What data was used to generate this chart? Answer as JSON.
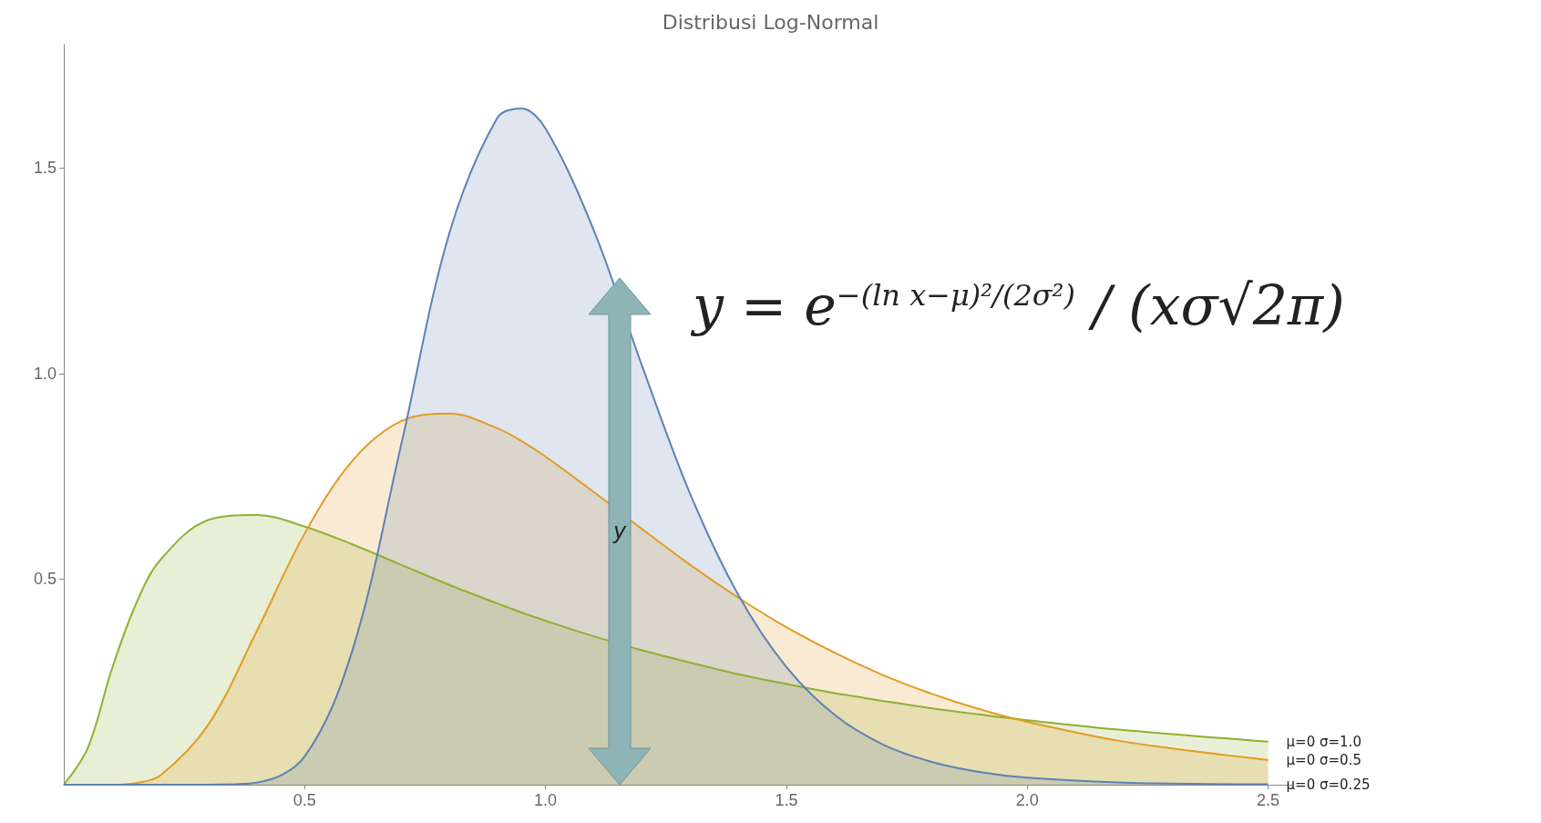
{
  "chart_data": {
    "type": "area",
    "title": "Distribusi Log-Normal",
    "x": [
      0,
      0.05,
      0.1,
      0.15,
      0.2,
      0.3,
      0.4,
      0.5,
      0.6,
      0.7,
      0.8,
      0.9,
      0.95,
      1.0,
      1.1,
      1.2,
      1.3,
      1.4,
      1.5,
      1.6,
      1.7,
      1.8,
      1.9,
      2.0,
      2.2,
      2.5
    ],
    "series": [
      {
        "name": "μ=0 σ=1.0",
        "color": "#8fb032",
        "values": [
          0,
          0.09,
          0.282,
          0.44,
          0.546,
          0.644,
          0.656,
          0.628,
          0.584,
          0.535,
          0.486,
          0.441,
          0.419,
          0.399,
          0.361,
          0.327,
          0.297,
          0.269,
          0.245,
          0.223,
          0.204,
          0.186,
          0.171,
          0.157,
          0.133,
          0.105
        ]
      },
      {
        "name": "μ=0 σ=0.5",
        "color": "#e19c24",
        "values": [
          0,
          0,
          0,
          0.004,
          0.022,
          0.146,
          0.372,
          0.611,
          0.789,
          0.884,
          0.903,
          0.867,
          0.836,
          0.798,
          0.712,
          0.622,
          0.535,
          0.455,
          0.383,
          0.321,
          0.267,
          0.222,
          0.184,
          0.153,
          0.105,
          0.06
        ]
      },
      {
        "name": "μ=0 σ=0.25",
        "color": "#5e81b5",
        "values": [
          0,
          0,
          0,
          0,
          0,
          0,
          0.005,
          0.069,
          0.33,
          0.825,
          1.34,
          1.622,
          1.645,
          1.596,
          1.349,
          1.02,
          0.708,
          0.462,
          0.286,
          0.17,
          0.098,
          0.056,
          0.031,
          0.017,
          0.005,
          0.001
        ]
      }
    ],
    "xlim": [
      0,
      2.55
    ],
    "xticks": [
      0.5,
      {
        "value": 1,
        "label": "1.0"
      },
      1.5,
      {
        "value": 2,
        "label": "2.0"
      },
      2.5
    ],
    "ylim": [
      0,
      1.8
    ],
    "yticks": [
      0.5,
      {
        "value": 1,
        "label": "1.0"
      },
      1.5
    ],
    "marker": "none",
    "annotations": [
      "y = e$^{−(ln x−μ)²/(2σ²)}$ / (xσ√2π)",
      "y"
    ]
  }
}
